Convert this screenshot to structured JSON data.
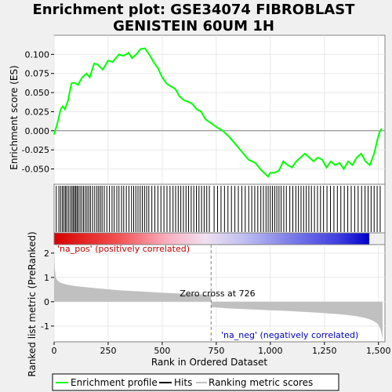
{
  "chart_data": [
    {
      "type": "line",
      "title_line1": "Enrichment plot: GSE34074 FIBROBLAST",
      "title_line2": "GENISTEIN 60UM 1H",
      "ylabel": "Enrichment score (ES)",
      "ylim": [
        -0.07,
        0.125
      ],
      "yticks": [
        0.1,
        0.075,
        0.05,
        0.025,
        0.0,
        -0.025,
        -0.05
      ],
      "ytick_labels": [
        "0.100",
        "0.075",
        "0.050",
        "0.025",
        "0.000",
        "-0.025",
        "-0.050"
      ],
      "xlim": [
        0,
        1530
      ],
      "color": "#00ff00",
      "x": [
        0,
        10,
        20,
        30,
        40,
        50,
        65,
        80,
        95,
        110,
        130,
        150,
        165,
        185,
        200,
        225,
        250,
        270,
        300,
        320,
        345,
        360,
        380,
        400,
        420,
        440,
        460,
        480,
        500,
        520,
        540,
        560,
        580,
        600,
        620,
        640,
        660,
        680,
        700,
        726,
        750,
        780,
        810,
        840,
        870,
        900,
        930,
        960,
        990,
        1000,
        1020,
        1040,
        1060,
        1080,
        1100,
        1120,
        1140,
        1160,
        1180,
        1200,
        1220,
        1240,
        1260,
        1280,
        1300,
        1320,
        1340,
        1360,
        1380,
        1400,
        1420,
        1440,
        1460,
        1480,
        1495,
        1505,
        1515
      ],
      "y": [
        -0.005,
        0.005,
        0.015,
        0.028,
        0.032,
        0.028,
        0.04,
        0.062,
        0.063,
        0.06,
        0.07,
        0.075,
        0.07,
        0.088,
        0.087,
        0.08,
        0.092,
        0.09,
        0.1,
        0.098,
        0.102,
        0.095,
        0.1,
        0.107,
        0.108,
        0.1,
        0.09,
        0.082,
        0.07,
        0.062,
        0.058,
        0.055,
        0.045,
        0.04,
        0.038,
        0.035,
        0.028,
        0.025,
        0.015,
        0.01,
        0.005,
        0.0,
        -0.008,
        -0.018,
        -0.028,
        -0.038,
        -0.042,
        -0.052,
        -0.06,
        -0.055,
        -0.055,
        -0.052,
        -0.04,
        -0.045,
        -0.048,
        -0.04,
        -0.035,
        -0.03,
        -0.035,
        -0.04,
        -0.035,
        -0.038,
        -0.048,
        -0.04,
        -0.045,
        -0.042,
        -0.05,
        -0.04,
        -0.045,
        -0.035,
        -0.03,
        -0.04,
        -0.045,
        -0.03,
        -0.012,
        -0.002,
        0.003
      ]
    },
    {
      "type": "rug",
      "hits_rank": [
        10,
        22,
        30,
        38,
        45,
        52,
        58,
        66,
        74,
        82,
        88,
        94,
        100,
        106,
        112,
        120,
        128,
        136,
        144,
        152,
        160,
        168,
        178,
        188,
        198,
        206,
        214,
        222,
        232,
        244,
        256,
        268,
        278,
        290,
        300,
        312,
        322,
        334,
        346,
        358,
        368,
        378,
        388,
        398,
        408,
        418,
        428,
        438,
        452,
        466,
        480,
        494,
        508,
        522,
        536,
        550,
        562,
        574,
        586,
        598,
        610,
        622,
        634,
        646,
        658,
        670,
        682,
        694,
        706,
        718,
        740,
        756,
        772,
        788,
        804,
        820,
        836,
        852,
        868,
        884,
        900,
        914,
        928,
        942,
        956,
        968,
        980,
        990,
        1000,
        1010,
        1020,
        1030,
        1040,
        1050,
        1062,
        1074,
        1090,
        1104,
        1118,
        1130,
        1142,
        1154,
        1166,
        1178,
        1190,
        1204,
        1218,
        1232,
        1246,
        1262,
        1278,
        1294,
        1310,
        1326,
        1342,
        1358,
        1374,
        1390,
        1406,
        1422,
        1438,
        1452,
        1466,
        1480,
        1494,
        1508
      ]
    },
    {
      "type": "area",
      "ylabel": "Ranked list metric (PreRanked)",
      "xlabel": "Rank in Ordered Dataset",
      "ylim": [
        -1.65,
        2.35
      ],
      "yticks": [
        2,
        1,
        0,
        -1
      ],
      "ytick_labels": [
        "2",
        "1",
        "0",
        "-1"
      ],
      "xlim": [
        0,
        1530
      ],
      "xticks": [
        0,
        250,
        500,
        750,
        1000,
        1250,
        1500
      ],
      "xtick_labels": [
        "0",
        "250",
        "500",
        "750",
        "1,000",
        "1,250",
        "1,500"
      ],
      "zero_cross_rank": 726,
      "zero_cross_label": "Zero cross at 726",
      "pos_label": "'na_pos' (positively correlated)",
      "neg_label": "'na_neg' (negatively correlated)",
      "fill_color": "#c0c0c0",
      "x": [
        0,
        3,
        8,
        15,
        30,
        60,
        100,
        200,
        300,
        400,
        500,
        600,
        700,
        725,
        726,
        727,
        800,
        900,
        1000,
        1100,
        1200,
        1300,
        1350,
        1400,
        1440,
        1470,
        1490,
        1500,
        1508,
        1514,
        1519
      ],
      "values": [
        2.2,
        1.4,
        1.0,
        0.88,
        0.78,
        0.7,
        0.64,
        0.55,
        0.47,
        0.42,
        0.37,
        0.33,
        0.29,
        0.26,
        0.0,
        -0.22,
        -0.27,
        -0.31,
        -0.35,
        -0.39,
        -0.44,
        -0.5,
        -0.54,
        -0.6,
        -0.67,
        -0.76,
        -0.86,
        -0.95,
        -1.1,
        -1.3,
        -1.55
      ]
    }
  ],
  "legend": {
    "items": [
      {
        "label": "Enrichment profile",
        "color": "#00ff00"
      },
      {
        "label": "Hits",
        "color": "#000000"
      },
      {
        "label": "Ranking metric scores",
        "color": "#c0c0c0"
      }
    ]
  }
}
